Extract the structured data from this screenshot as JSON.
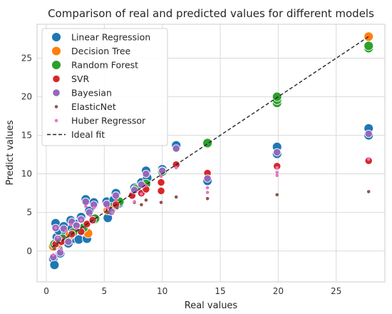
{
  "chart_data": {
    "type": "scatter",
    "title": "Comparison of real and predicted values for different models",
    "xlabel": "Real values",
    "ylabel": "Predict values",
    "xlim": [
      -0.8,
      29.2
    ],
    "ylim": [
      -4.0,
      29.4
    ],
    "xticks": [
      0,
      5,
      10,
      15,
      20,
      25
    ],
    "yticks": [
      0,
      5,
      10,
      15,
      20,
      25
    ],
    "grid": true,
    "legend_position": "top-left",
    "ideal_fit": {
      "name": "Ideal fit",
      "x": [
        0.5,
        27.8
      ],
      "y": [
        0.5,
        27.8
      ],
      "color": "#262626",
      "style": "dashed"
    },
    "series": [
      {
        "name": "Linear Regression",
        "color": "#1f77b4",
        "size": "large",
        "points": [
          [
            0.6,
            -1.0
          ],
          [
            0.7,
            -1.8
          ],
          [
            0.8,
            3.6
          ],
          [
            0.9,
            1.8
          ],
          [
            1.0,
            0.5
          ],
          [
            1.1,
            2.6
          ],
          [
            1.2,
            -0.3
          ],
          [
            1.3,
            1.4
          ],
          [
            1.5,
            3.2
          ],
          [
            1.7,
            2.4
          ],
          [
            1.9,
            1.0
          ],
          [
            2.1,
            4.0
          ],
          [
            2.2,
            2.9
          ],
          [
            2.4,
            1.6
          ],
          [
            2.6,
            3.5
          ],
          [
            2.8,
            1.5
          ],
          [
            3.0,
            4.4
          ],
          [
            3.2,
            3.2
          ],
          [
            3.4,
            6.7
          ],
          [
            3.5,
            1.6
          ],
          [
            3.7,
            5.2
          ],
          [
            4.1,
            6.3
          ],
          [
            4.2,
            4.1
          ],
          [
            5.2,
            6.4
          ],
          [
            5.3,
            4.3
          ],
          [
            5.6,
            5.3
          ],
          [
            5.8,
            6.6
          ],
          [
            6.0,
            7.5
          ],
          [
            6.3,
            6.2
          ],
          [
            7.6,
            8.2
          ],
          [
            8.2,
            8.9
          ],
          [
            8.6,
            10.4
          ],
          [
            8.7,
            9.5
          ],
          [
            10.0,
            10.6
          ],
          [
            11.2,
            13.7
          ],
          [
            13.9,
            9.1
          ],
          [
            13.9,
            14.0
          ],
          [
            19.9,
            12.6
          ],
          [
            19.9,
            13.5
          ],
          [
            27.8,
            15.9
          ],
          [
            27.8,
            15.0
          ]
        ]
      },
      {
        "name": "Decision Tree",
        "color": "#ff7f0e",
        "size": "large",
        "points": [
          [
            0.6,
            0.6
          ],
          [
            1.0,
            1.0
          ],
          [
            2.0,
            2.0
          ],
          [
            3.3,
            3.3
          ],
          [
            3.6,
            2.3
          ],
          [
            5.3,
            5.3
          ],
          [
            8.6,
            8.6
          ],
          [
            13.9,
            13.9
          ],
          [
            19.9,
            19.9
          ],
          [
            27.8,
            27.8
          ]
        ]
      },
      {
        "name": "Random Forest",
        "color": "#2ca02c",
        "size": "large",
        "points": [
          [
            0.7,
            0.9
          ],
          [
            1.4,
            1.6
          ],
          [
            2.3,
            2.4
          ],
          [
            3.2,
            3.0
          ],
          [
            4.2,
            4.2
          ],
          [
            5.6,
            5.7
          ],
          [
            6.3,
            6.4
          ],
          [
            7.7,
            8.0
          ],
          [
            8.6,
            8.7
          ],
          [
            10.0,
            10.3
          ],
          [
            13.9,
            14.0
          ],
          [
            19.9,
            19.2
          ],
          [
            19.9,
            19.6
          ],
          [
            19.9,
            20.0
          ],
          [
            27.8,
            26.3
          ],
          [
            27.8,
            26.6
          ]
        ]
      },
      {
        "name": "SVR",
        "color": "#d62728",
        "size": "medium",
        "points": [
          [
            0.8,
            0.9
          ],
          [
            1.3,
            1.2
          ],
          [
            2.2,
            2.2
          ],
          [
            3.0,
            2.5
          ],
          [
            3.5,
            3.5
          ],
          [
            4.0,
            4.0
          ],
          [
            5.4,
            5.4
          ],
          [
            6.0,
            6.0
          ],
          [
            7.4,
            7.2
          ],
          [
            8.2,
            7.5
          ],
          [
            8.6,
            8.0
          ],
          [
            9.9,
            7.8
          ],
          [
            9.9,
            8.9
          ],
          [
            11.2,
            11.2
          ],
          [
            13.9,
            10.1
          ],
          [
            19.9,
            11.0
          ],
          [
            27.8,
            11.7
          ]
        ]
      },
      {
        "name": "Bayesian",
        "color": "#9467bd",
        "size": "medium",
        "points": [
          [
            0.6,
            -0.8
          ],
          [
            0.8,
            3.0
          ],
          [
            1.0,
            1.6
          ],
          [
            1.2,
            -0.2
          ],
          [
            1.5,
            2.9
          ],
          [
            1.9,
            1.2
          ],
          [
            2.2,
            3.8
          ],
          [
            2.6,
            3.3
          ],
          [
            3.0,
            4.1
          ],
          [
            3.4,
            6.4
          ],
          [
            3.7,
            5.0
          ],
          [
            4.1,
            6.0
          ],
          [
            5.2,
            6.1
          ],
          [
            5.6,
            5.1
          ],
          [
            6.0,
            7.2
          ],
          [
            7.6,
            7.9
          ],
          [
            8.2,
            8.6
          ],
          [
            8.6,
            10.0
          ],
          [
            10.0,
            10.4
          ],
          [
            11.2,
            13.3
          ],
          [
            13.9,
            9.4
          ],
          [
            19.9,
            12.8
          ],
          [
            27.8,
            15.2
          ]
        ]
      },
      {
        "name": "ElasticNet",
        "color": "#8c564b",
        "size": "small",
        "points": [
          [
            0.7,
            0.3
          ],
          [
            1.0,
            1.2
          ],
          [
            1.5,
            1.8
          ],
          [
            2.0,
            2.1
          ],
          [
            2.8,
            2.6
          ],
          [
            3.3,
            3.1
          ],
          [
            4.1,
            3.8
          ],
          [
            5.3,
            5.0
          ],
          [
            6.1,
            5.6
          ],
          [
            7.6,
            6.3
          ],
          [
            8.2,
            6.0
          ],
          [
            8.6,
            6.6
          ],
          [
            9.9,
            6.3
          ],
          [
            11.2,
            7.0
          ],
          [
            13.9,
            6.8
          ],
          [
            19.9,
            7.3
          ],
          [
            27.8,
            7.7
          ]
        ]
      },
      {
        "name": "Huber Regressor",
        "color": "#e377c2",
        "size": "small",
        "points": [
          [
            0.6,
            -0.5
          ],
          [
            0.8,
            3.0
          ],
          [
            1.0,
            1.8
          ],
          [
            1.3,
            0.2
          ],
          [
            1.7,
            2.6
          ],
          [
            2.1,
            3.4
          ],
          [
            2.6,
            2.9
          ],
          [
            3.0,
            4.0
          ],
          [
            3.4,
            5.8
          ],
          [
            3.8,
            4.6
          ],
          [
            4.1,
            5.6
          ],
          [
            5.3,
            5.6
          ],
          [
            5.7,
            5.0
          ],
          [
            6.0,
            6.6
          ],
          [
            7.6,
            6.4
          ],
          [
            8.2,
            7.4
          ],
          [
            8.6,
            8.5
          ],
          [
            9.9,
            9.7
          ],
          [
            11.2,
            10.8
          ],
          [
            13.9,
            8.2
          ],
          [
            13.9,
            7.6
          ],
          [
            19.9,
            10.8
          ],
          [
            19.9,
            10.2
          ],
          [
            19.9,
            9.8
          ],
          [
            27.8,
            11.9
          ]
        ]
      }
    ]
  }
}
